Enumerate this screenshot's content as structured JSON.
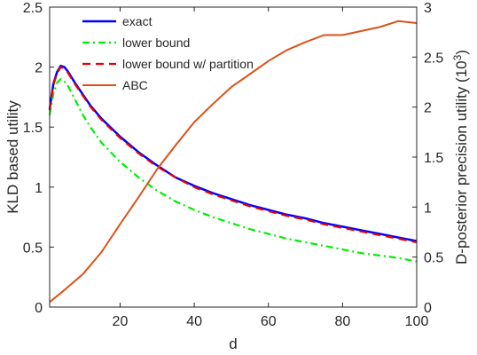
{
  "chart_data": {
    "type": "line",
    "title": "",
    "xlabel": "d",
    "ylabel_left": "KLD based utility",
    "ylabel_right_prefix": "D-posterior precision utility (10",
    "ylabel_right_exponent": "3",
    "ylabel_right_suffix": ")",
    "xlim": [
      1,
      100
    ],
    "ylim_left": [
      0,
      2.5
    ],
    "ylim_right": [
      0,
      3
    ],
    "x_ticks": [
      "20",
      "40",
      "60",
      "80",
      "100"
    ],
    "y_ticks_left": [
      "0",
      "0.5",
      "1",
      "1.5",
      "2",
      "2.5"
    ],
    "y_ticks_right": [
      "0",
      "0.5",
      "1",
      "1.5",
      "2",
      "2.5",
      "3"
    ],
    "grid": false,
    "legend_position": "top-left",
    "series": [
      {
        "name": "exact",
        "axis": "left",
        "color": "#0000ff",
        "dash": "solid",
        "x": [
          1,
          2,
          3,
          4,
          5,
          6,
          7,
          8,
          10,
          12,
          15,
          20,
          25,
          30,
          35,
          40,
          45,
          50,
          55,
          60,
          65,
          70,
          75,
          80,
          85,
          90,
          95,
          100
        ],
        "y": [
          1.65,
          1.86,
          1.96,
          2.01,
          2.0,
          1.96,
          1.91,
          1.86,
          1.77,
          1.68,
          1.57,
          1.42,
          1.29,
          1.18,
          1.08,
          1.01,
          0.95,
          0.9,
          0.85,
          0.81,
          0.77,
          0.74,
          0.7,
          0.67,
          0.64,
          0.61,
          0.58,
          0.55
        ]
      },
      {
        "name": "lower bound",
        "axis": "left",
        "color": "#00ee00",
        "dash": "dashdot",
        "x": [
          1,
          2,
          3,
          4,
          5,
          6,
          7,
          8,
          10,
          12,
          15,
          20,
          25,
          30,
          35,
          40,
          45,
          50,
          55,
          60,
          65,
          70,
          75,
          80,
          85,
          90,
          95,
          100
        ],
        "y": [
          1.6,
          1.78,
          1.87,
          1.9,
          1.88,
          1.84,
          1.78,
          1.72,
          1.6,
          1.5,
          1.37,
          1.21,
          1.08,
          0.97,
          0.88,
          0.81,
          0.75,
          0.7,
          0.65,
          0.61,
          0.57,
          0.54,
          0.51,
          0.48,
          0.45,
          0.43,
          0.41,
          0.38
        ]
      },
      {
        "name": "lower bound w/ partition",
        "axis": "left",
        "color": "#e60000",
        "dash": "dashed",
        "x": [
          1,
          2,
          3,
          4,
          5,
          6,
          7,
          8,
          10,
          12,
          15,
          20,
          25,
          30,
          35,
          40,
          45,
          50,
          55,
          60,
          65,
          70,
          75,
          80,
          85,
          90,
          95,
          100
        ],
        "y": [
          1.64,
          1.85,
          1.95,
          2.0,
          1.99,
          1.95,
          1.9,
          1.85,
          1.76,
          1.67,
          1.56,
          1.41,
          1.28,
          1.17,
          1.08,
          1.0,
          0.94,
          0.89,
          0.84,
          0.8,
          0.76,
          0.73,
          0.69,
          0.66,
          0.63,
          0.6,
          0.57,
          0.54
        ]
      },
      {
        "name": "ABC",
        "axis": "right",
        "color": "#d95319",
        "dash": "solid",
        "x": [
          1,
          5,
          10,
          15,
          20,
          25,
          30,
          35,
          40,
          45,
          50,
          55,
          60,
          65,
          70,
          75,
          80,
          85,
          90,
          95,
          100
        ],
        "y": [
          0.05,
          0.17,
          0.33,
          0.55,
          0.83,
          1.1,
          1.38,
          1.62,
          1.85,
          2.03,
          2.2,
          2.33,
          2.46,
          2.57,
          2.65,
          2.72,
          2.72,
          2.76,
          2.8,
          2.86,
          2.84
        ]
      }
    ]
  }
}
